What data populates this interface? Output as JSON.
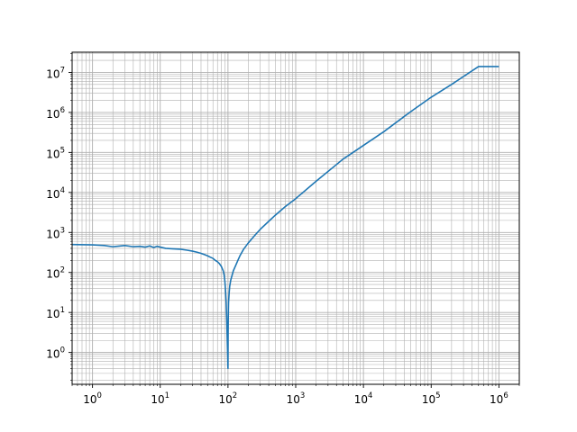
{
  "chart_data": {
    "type": "line",
    "title": "",
    "xlabel": "",
    "ylabel": "",
    "x_scale": "log",
    "y_scale": "log",
    "xlim": [
      0.5,
      2000000
    ],
    "ylim": [
      0.16,
      32000000
    ],
    "grid": "both-major-and-minor",
    "x_ticks": [
      {
        "base": "10",
        "exp": "0",
        "value": 1
      },
      {
        "base": "10",
        "exp": "1",
        "value": 10
      },
      {
        "base": "10",
        "exp": "2",
        "value": 100
      },
      {
        "base": "10",
        "exp": "3",
        "value": 1000
      },
      {
        "base": "10",
        "exp": "4",
        "value": 10000
      },
      {
        "base": "10",
        "exp": "5",
        "value": 100000
      },
      {
        "base": "10",
        "exp": "6",
        "value": 1000000
      }
    ],
    "y_ticks": [
      {
        "base": "10",
        "exp": "0",
        "value": 1
      },
      {
        "base": "10",
        "exp": "1",
        "value": 10
      },
      {
        "base": "10",
        "exp": "2",
        "value": 100
      },
      {
        "base": "10",
        "exp": "3",
        "value": 1000
      },
      {
        "base": "10",
        "exp": "4",
        "value": 10000
      },
      {
        "base": "10",
        "exp": "5",
        "value": 100000
      },
      {
        "base": "10",
        "exp": "6",
        "value": 1000000
      },
      {
        "base": "10",
        "exp": "7",
        "value": 10000000
      }
    ],
    "series": [
      {
        "color": "#1f77b4",
        "x": [
          0.5,
          1,
          1.5,
          2,
          3,
          4,
          5,
          6,
          7,
          8,
          9,
          10,
          12,
          15,
          20,
          25,
          30,
          35,
          40,
          45,
          50,
          55,
          60,
          65,
          70,
          75,
          80,
          85,
          88,
          90,
          92,
          94,
          95,
          96,
          97,
          98,
          99,
          99.5,
          100,
          100.5,
          101,
          102,
          104,
          106,
          110,
          115,
          120,
          130,
          140,
          150,
          170,
          200,
          250,
          300,
          400,
          500,
          700,
          1000,
          2000,
          5000,
          10000,
          20000,
          50000,
          100000,
          200000,
          500000,
          1000000
        ],
        "y": [
          500,
          490,
          470,
          440,
          470,
          440,
          450,
          430,
          460,
          420,
          450,
          430,
          400,
          390,
          380,
          360,
          340,
          320,
          300,
          280,
          260,
          240,
          225,
          200,
          185,
          165,
          140,
          110,
          85,
          60,
          35,
          18,
          10,
          6,
          3,
          1.5,
          0.8,
          0.45,
          0.4,
          3,
          8,
          18,
          30,
          45,
          65,
          85,
          110,
          150,
          200,
          260,
          380,
          550,
          850,
          1200,
          1900,
          2700,
          4400,
          7000,
          19000,
          68000,
          150000,
          330000,
          1050000,
          2400000,
          5000000,
          14000000,
          14000000
        ]
      }
    ]
  }
}
